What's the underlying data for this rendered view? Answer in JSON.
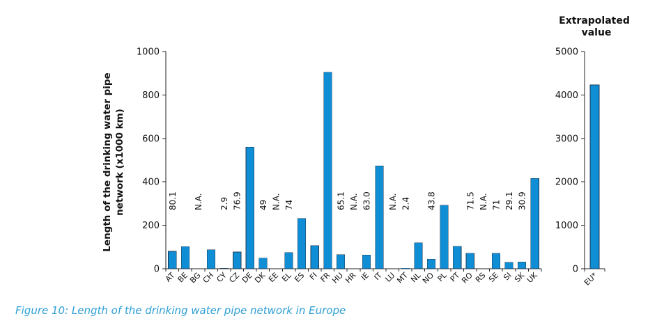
{
  "colors": {
    "bar": "#0f8ed6",
    "caption": "#2e9fd6"
  },
  "caption": "Figure 10: Length of the drinking water pipe network in Europe",
  "chart_data": [
    {
      "type": "bar",
      "ylabel_line1": "Length of the drinking water pipe",
      "ylabel_line2": "network (x1000 km)",
      "ylim": [
        0,
        1000
      ],
      "yticks": [
        0,
        200,
        400,
        600,
        800,
        1000
      ],
      "categories": [
        "AT",
        "BE",
        "BG",
        "CH",
        "CY",
        "CZ",
        "DE",
        "DK",
        "EE",
        "EL",
        "ES",
        "FI",
        "FR",
        "HU",
        "HR",
        "IE",
        "IT",
        "LU",
        "MT",
        "NL",
        "NO",
        "PL",
        "PT",
        "RO",
        "RS",
        "SE",
        "SI",
        "SK",
        "UK"
      ],
      "values": [
        80.1,
        102,
        null,
        87,
        2.9,
        76.9,
        560,
        49,
        null,
        74,
        231,
        106,
        905,
        65.1,
        null,
        63.0,
        474,
        null,
        2.4,
        120,
        43.8,
        292,
        104,
        71.5,
        null,
        71,
        29.1,
        30.9,
        416
      ],
      "value_labels": [
        "80.1",
        "",
        "N.A.",
        "",
        "2.9",
        "76.9",
        "",
        "49",
        "N.A.",
        "74",
        "",
        "",
        "",
        "65.1",
        "N.A.",
        "63.0",
        "",
        "N.A.",
        "2.4",
        "",
        "43.8",
        "",
        "",
        "71.5",
        "N.A.",
        "71",
        "29.1",
        "30.9",
        ""
      ]
    },
    {
      "type": "bar",
      "title_line1": "Extrapolated",
      "title_line2": "value",
      "ylim": [
        0,
        5000
      ],
      "yticks": [
        0,
        1000,
        2000,
        3000,
        4000,
        5000
      ],
      "categories": [
        "EU*"
      ],
      "values": [
        4230
      ]
    }
  ]
}
